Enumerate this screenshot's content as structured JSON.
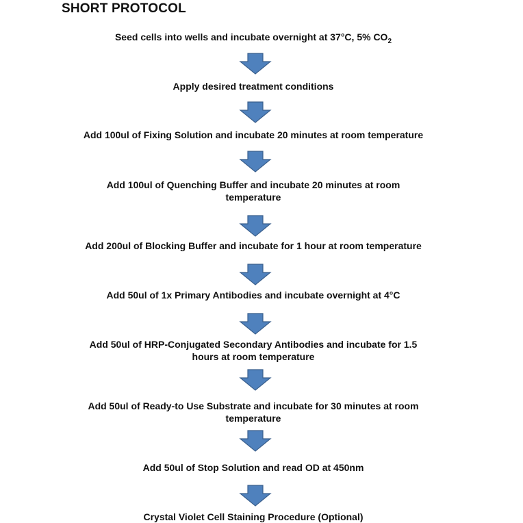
{
  "title": "SHORT PROTOCOL",
  "arrow_color": "#4F81BD",
  "steps": [
    {
      "lines": [
        "Seed cells into wells and incubate overnight at 37°C, 5% CO"
      ],
      "subscript": "2"
    },
    {
      "lines": [
        "Apply desired treatment conditions"
      ]
    },
    {
      "lines": [
        "Add 100ul of Fixing Solution and incubate 20 minutes at room temperature"
      ]
    },
    {
      "lines": [
        "Add 100ul of Quenching Buffer and incubate 20 minutes at room",
        "temperature"
      ]
    },
    {
      "lines": [
        "Add 200ul of Blocking Buffer and incubate for 1 hour at room temperature"
      ]
    },
    {
      "lines": [
        "Add 50ul of 1x Primary Antibodies and incubate overnight at 4°C"
      ]
    },
    {
      "lines": [
        "Add 50ul of HRP-Conjugated Secondary Antibodies and incubate for 1.5",
        "hours at room temperature"
      ]
    },
    {
      "lines": [
        "Add 50ul of Ready-to Use Substrate and incubate for 30 minutes at room",
        "temperature"
      ]
    },
    {
      "lines": [
        "Add 50ul of Stop Solution and read OD at 450nm"
      ]
    },
    {
      "lines": [
        "Crystal Violet Cell Staining Procedure (Optional)"
      ]
    }
  ]
}
